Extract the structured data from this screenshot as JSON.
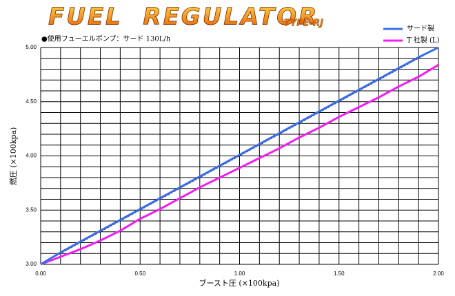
{
  "chart_data": {
    "type": "line",
    "title": "FUEL  REGULATOR",
    "title_suffix": "TYPE-RJ",
    "subtitle": "●使用フューエルポンプ：サード 130L/h",
    "x_label": "ブースト圧 (×100kpa)",
    "y_label": "燃圧 (×100kpa)",
    "x": [
      0,
      0.1,
      0.2,
      0.3,
      0.4,
      0.5,
      0.6,
      0.7,
      0.8,
      0.9,
      1.0,
      1.1,
      1.2,
      1.3,
      1.4,
      1.5,
      1.6,
      1.7,
      1.8,
      1.9,
      2.0
    ],
    "series": [
      {
        "name": "サード製",
        "color": "#3a6ee8",
        "values": [
          3.0,
          3.11,
          3.21,
          3.31,
          3.41,
          3.51,
          3.61,
          3.71,
          3.81,
          3.91,
          4.01,
          4.11,
          4.21,
          4.31,
          4.41,
          4.51,
          4.61,
          4.71,
          4.81,
          4.91,
          5.0
        ]
      },
      {
        "name": "T 社製 (L)",
        "color": "#f01ef0",
        "values": [
          3.0,
          3.07,
          3.14,
          3.22,
          3.31,
          3.42,
          3.51,
          3.61,
          3.71,
          3.8,
          3.89,
          3.98,
          4.07,
          4.17,
          4.26,
          4.36,
          4.45,
          4.54,
          4.64,
          4.73,
          4.84
        ]
      },
      {
        "color": "#000000",
        "dashed": true,
        "values": [
          3.0,
          3.1,
          3.2,
          3.3,
          3.4,
          3.5,
          3.6,
          3.7,
          3.8,
          3.9,
          4.0,
          4.1,
          4.2,
          4.3,
          4.4,
          4.5,
          4.6,
          4.7,
          4.8,
          4.9,
          5.0
        ]
      }
    ],
    "xlim": [
      0,
      2
    ],
    "ylim": [
      3,
      5
    ],
    "xticks": [
      {
        "value": 0,
        "label": "0.00"
      },
      {
        "value": 0.5,
        "label": "0.50"
      },
      {
        "value": 1,
        "label": "1.00"
      },
      {
        "value": 1.5,
        "label": "1.50"
      },
      {
        "value": 2,
        "label": "2.00"
      }
    ],
    "yticks": [
      {
        "value": 3,
        "label": "3.00"
      },
      {
        "value": 3.5,
        "label": "3.50"
      },
      {
        "value": 4,
        "label": "4.00"
      },
      {
        "value": 4.5,
        "label": "4.50"
      },
      {
        "value": 5,
        "label": "5.00"
      }
    ],
    "xgrid": [
      0.1,
      0.2,
      0.3,
      0.4,
      0.6,
      0.7,
      0.8,
      0.9,
      1.1,
      1.2,
      1.3,
      1.4,
      1.6,
      1.7,
      1.8,
      1.9
    ],
    "ygrid": [
      3.1,
      3.2,
      3.3,
      3.4,
      3.6,
      3.7,
      3.8,
      3.9,
      4.1,
      4.2,
      4.3,
      4.4,
      4.6,
      4.7,
      4.8,
      4.9
    ],
    "grid": true,
    "legend": "top-right"
  }
}
